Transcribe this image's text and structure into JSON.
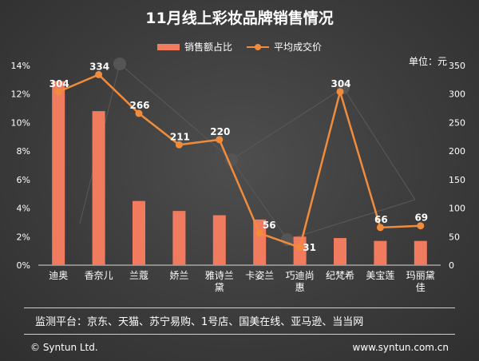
{
  "chart_data": {
    "type": "bar",
    "title": "11月线上彩妆品牌销售情况",
    "categories": [
      "迪奥",
      "香奈儿",
      "兰蔻",
      "娇兰",
      "雅诗兰黛",
      "卡姿兰",
      "巧迪尚惠",
      "纪梵希",
      "美宝莲",
      "玛丽黛佳"
    ],
    "category_lines": [
      [
        "迪奥"
      ],
      [
        "香奈儿"
      ],
      [
        "兰蔻"
      ],
      [
        "娇兰"
      ],
      [
        "雅诗兰",
        "黛"
      ],
      [
        "卡姿兰"
      ],
      [
        "巧迪尚",
        "惠"
      ],
      [
        "纪梵希"
      ],
      [
        "美宝莲"
      ],
      [
        "玛丽黛",
        "佳"
      ]
    ],
    "series": [
      {
        "name": "销售额占比",
        "type": "bar",
        "axis": "left",
        "values": [
          12.9,
          10.8,
          4.5,
          3.8,
          3.5,
          3.2,
          2.0,
          1.9,
          1.7,
          1.7
        ]
      },
      {
        "name": "平均成交价",
        "type": "line",
        "axis": "right",
        "values": [
          304,
          334,
          266,
          211,
          220,
          56,
          31,
          304,
          66,
          69
        ],
        "labels": [
          "304",
          "334",
          "266",
          "211",
          "220",
          "56",
          "31",
          "304",
          "66",
          "69"
        ]
      }
    ],
    "left_axis": {
      "ylim": [
        0,
        14
      ],
      "ticks": [
        "0%",
        "2%",
        "4%",
        "6%",
        "8%",
        "10%",
        "12%",
        "14%"
      ]
    },
    "right_axis": {
      "ylim": [
        0,
        350
      ],
      "ticks": [
        "0",
        "50",
        "100",
        "150",
        "200",
        "250",
        "300",
        "350"
      ],
      "unit_label": "单位：元"
    },
    "legend_position": "top-center",
    "grid": false,
    "colors": {
      "bar": "#f07b5f",
      "line": "#f08c3c",
      "text": "#ffffff",
      "background": "#3c3c3c"
    }
  },
  "footer": {
    "platforms": "监测平台：京东、天猫、苏宁易购、1号店、国美在线、亚马逊、当当网",
    "copyright": "© Syntun Ltd.",
    "website": "www.syntun.com.cn"
  }
}
